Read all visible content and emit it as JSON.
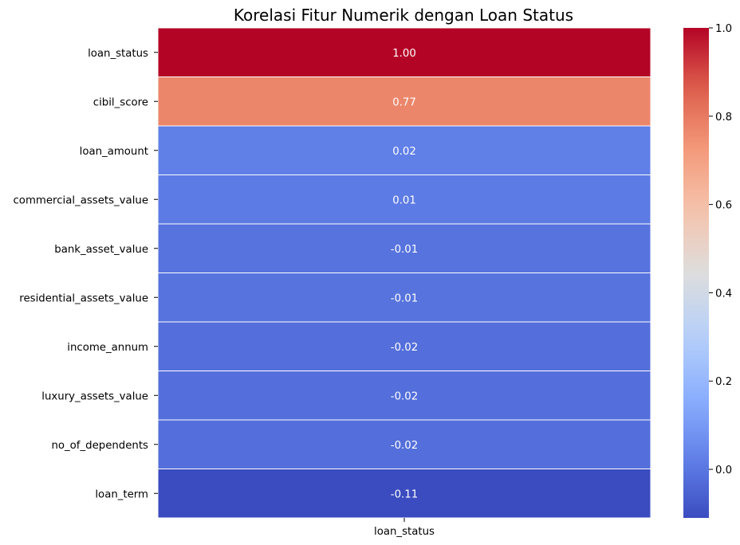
{
  "chart_data": {
    "type": "heatmap",
    "title": "Korelasi Fitur Numerik dengan Loan Status",
    "columns": [
      "loan_status"
    ],
    "rows": [
      "loan_status",
      "cibil_score",
      "loan_amount",
      "commercial_assets_value",
      "bank_asset_value",
      "residential_assets_value",
      "income_annum",
      "luxury_assets_value",
      "no_of_dependents",
      "loan_term"
    ],
    "values": [
      1.0,
      0.77,
      0.02,
      0.01,
      -0.01,
      -0.01,
      -0.02,
      -0.02,
      -0.02,
      -0.11
    ],
    "value_labels": [
      "1.00",
      "0.77",
      "0.02",
      "0.01",
      "-0.01",
      "-0.01",
      "-0.02",
      "-0.02",
      "-0.02",
      "-0.11"
    ],
    "colormap": "coolwarm",
    "colorbar": {
      "range": [
        -0.11,
        1.0
      ],
      "ticks": [
        "0.0",
        "0.2",
        "0.4",
        "0.6",
        "0.8",
        "1.0"
      ],
      "tick_values": [
        0.0,
        0.2,
        0.4,
        0.6,
        0.8,
        1.0
      ]
    }
  }
}
